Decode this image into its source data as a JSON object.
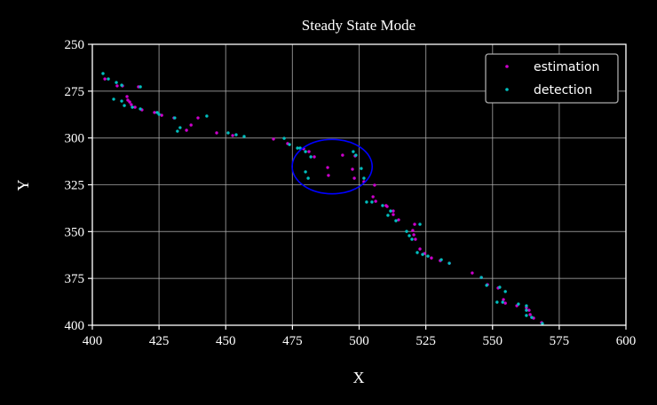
{
  "chart_data": {
    "type": "scatter",
    "title": "Steady State Mode",
    "xlabel": "X",
    "ylabel": "Y",
    "xlim": [
      400,
      600
    ],
    "ylim": [
      400,
      250
    ],
    "y_inverted": true,
    "grid": true,
    "xticks": [
      "400",
      "425",
      "450",
      "475",
      "500",
      "525",
      "550",
      "575",
      "600"
    ],
    "yticks": [
      "250",
      "275",
      "300",
      "325",
      "350",
      "375",
      "400"
    ],
    "legend_position": "top-right",
    "series": [
      {
        "name": "estimation",
        "color": "#cc00cc",
        "points": [
          [
            404.7,
            268.5
          ],
          [
            409.3,
            272.2
          ],
          [
            411.3,
            272.2
          ],
          [
            417.3,
            272.7
          ],
          [
            413.0,
            277.9
          ],
          [
            413.3,
            279.8
          ],
          [
            414.0,
            280.8
          ],
          [
            414.6,
            282.2
          ],
          [
            416.0,
            283.6
          ],
          [
            418.6,
            285.0
          ],
          [
            423.3,
            286.4
          ],
          [
            426.0,
            287.9
          ],
          [
            430.6,
            289.3
          ],
          [
            439.6,
            289.3
          ],
          [
            437.0,
            293.1
          ],
          [
            435.3,
            295.9
          ],
          [
            446.6,
            297.3
          ],
          [
            452.6,
            298.7
          ],
          [
            467.9,
            300.6
          ],
          [
            473.2,
            303.0
          ],
          [
            479.2,
            305.8
          ],
          [
            481.2,
            307.3
          ],
          [
            483.2,
            310.1
          ],
          [
            493.8,
            309.2
          ],
          [
            498.5,
            309.6
          ],
          [
            488.2,
            315.8
          ],
          [
            488.5,
            320.0
          ],
          [
            497.5,
            316.7
          ],
          [
            498.2,
            321.5
          ],
          [
            501.8,
            323.4
          ],
          [
            505.8,
            325.2
          ],
          [
            505.2,
            331.4
          ],
          [
            506.2,
            333.8
          ],
          [
            510.1,
            336.1
          ],
          [
            510.5,
            336.6
          ],
          [
            512.8,
            339.0
          ],
          [
            512.8,
            340.9
          ],
          [
            514.8,
            343.7
          ],
          [
            520.8,
            346.1
          ],
          [
            520.1,
            349.4
          ],
          [
            520.5,
            351.7
          ],
          [
            521.1,
            354.1
          ],
          [
            522.8,
            359.3
          ],
          [
            524.5,
            361.7
          ],
          [
            527.1,
            364.1
          ],
          [
            530.4,
            365.5
          ],
          [
            533.8,
            366.9
          ],
          [
            542.4,
            372.1
          ],
          [
            545.8,
            374.5
          ],
          [
            548.1,
            378.3
          ],
          [
            552.1,
            380.1
          ],
          [
            554.1,
            386.3
          ],
          [
            554.8,
            388.2
          ],
          [
            559.1,
            389.6
          ],
          [
            562.7,
            390.6
          ],
          [
            563.7,
            392.0
          ],
          [
            564.1,
            394.3
          ],
          [
            565.4,
            396.2
          ],
          [
            568.4,
            398.6
          ]
        ]
      },
      {
        "name": "detection",
        "color": "#00bfbf",
        "points": [
          [
            404.0,
            265.6
          ],
          [
            406.0,
            268.5
          ],
          [
            409.0,
            270.4
          ],
          [
            411.0,
            271.8
          ],
          [
            418.0,
            272.7
          ],
          [
            408.0,
            279.3
          ],
          [
            411.0,
            280.3
          ],
          [
            412.0,
            282.7
          ],
          [
            415.0,
            283.6
          ],
          [
            418.0,
            284.5
          ],
          [
            424.3,
            286.4
          ],
          [
            425.0,
            287.4
          ],
          [
            430.9,
            289.3
          ],
          [
            432.9,
            294.5
          ],
          [
            431.9,
            296.4
          ],
          [
            442.9,
            288.3
          ],
          [
            450.9,
            297.3
          ],
          [
            453.9,
            298.3
          ],
          [
            456.9,
            299.2
          ],
          [
            471.9,
            300.2
          ],
          [
            473.9,
            303.5
          ],
          [
            476.9,
            305.4
          ],
          [
            477.9,
            305.4
          ],
          [
            479.9,
            307.3
          ],
          [
            481.9,
            310.1
          ],
          [
            479.9,
            318.1
          ],
          [
            480.9,
            321.5
          ],
          [
            497.8,
            307.3
          ],
          [
            498.8,
            309.2
          ],
          [
            500.8,
            316.3
          ],
          [
            501.8,
            321.5
          ],
          [
            502.8,
            334.2
          ],
          [
            504.8,
            334.2
          ],
          [
            508.8,
            336.1
          ],
          [
            511.8,
            339.0
          ],
          [
            510.8,
            341.3
          ],
          [
            513.8,
            344.2
          ],
          [
            522.8,
            346.1
          ],
          [
            517.8,
            349.9
          ],
          [
            518.8,
            352.2
          ],
          [
            519.8,
            354.1
          ],
          [
            521.8,
            361.2
          ],
          [
            523.8,
            362.2
          ],
          [
            525.8,
            363.1
          ],
          [
            530.8,
            365.0
          ],
          [
            533.8,
            366.9
          ],
          [
            545.8,
            374.5
          ],
          [
            547.8,
            378.7
          ],
          [
            552.7,
            379.7
          ],
          [
            554.8,
            382.0
          ],
          [
            551.7,
            387.7
          ],
          [
            553.8,
            387.7
          ],
          [
            559.7,
            388.7
          ],
          [
            562.7,
            389.6
          ],
          [
            562.7,
            392.0
          ],
          [
            562.7,
            394.8
          ],
          [
            564.7,
            395.8
          ],
          [
            568.7,
            399.1
          ]
        ]
      }
    ],
    "annotations": [
      {
        "type": "ellipse",
        "color": "#0000ff",
        "center": [
          489.9,
          315.3
        ],
        "width": 30,
        "height": 29
      }
    ]
  }
}
